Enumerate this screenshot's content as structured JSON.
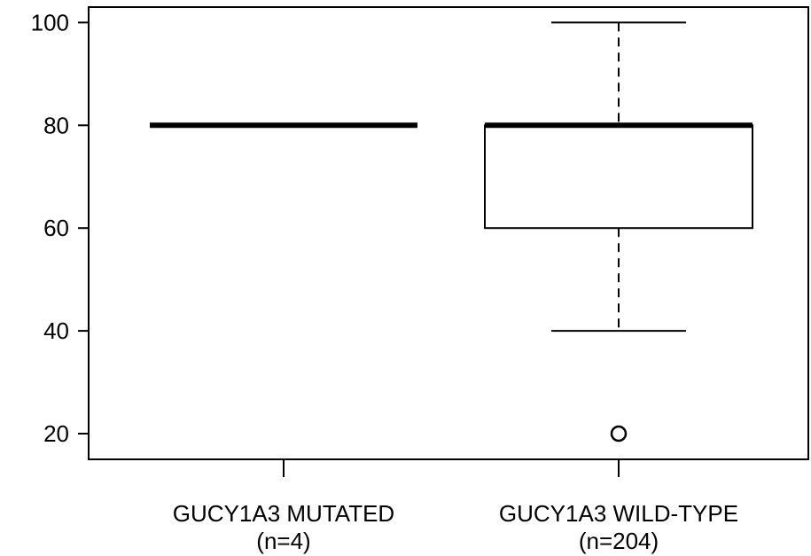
{
  "chart_data": {
    "type": "boxplot",
    "title": "",
    "xlabel": "",
    "ylabel": "",
    "ylim": [
      15,
      103
    ],
    "yticks": [
      20,
      40,
      60,
      80,
      100
    ],
    "grid": false,
    "groups": [
      {
        "label": "GUCY1A3 MUTATED",
        "n_label": "(n=4)",
        "min": 80,
        "q1": 80,
        "median": 80,
        "q3": 80,
        "max": 80,
        "outliers": []
      },
      {
        "label": "GUCY1A3 WILD-TYPE",
        "n_label": "(n=204)",
        "min": 40,
        "q1": 60,
        "median": 80,
        "q3": 80,
        "max": 100,
        "outliers": [
          20
        ]
      }
    ]
  }
}
